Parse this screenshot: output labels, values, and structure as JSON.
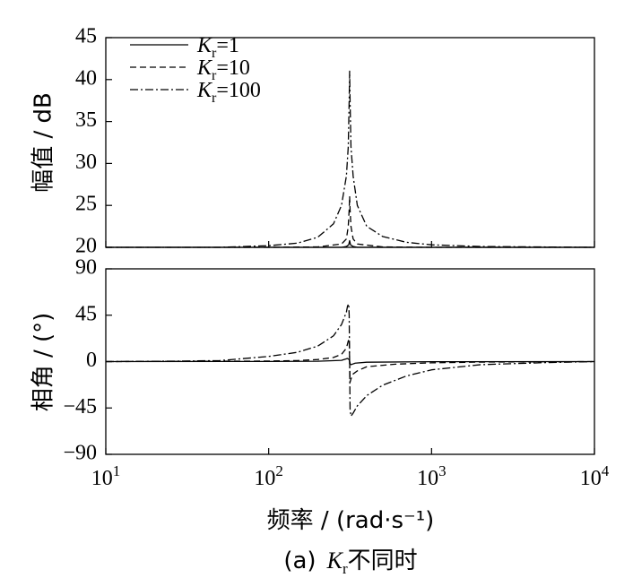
{
  "caption": {
    "prefix": "(a)",
    "K": "K",
    "sub": "r",
    "suffix": "不同时"
  },
  "chart_data": [
    {
      "type": "line",
      "ylabel": "幅值 / dB",
      "ylim": [
        20,
        45
      ],
      "yticks": [
        20,
        25,
        30,
        35,
        40,
        45
      ],
      "xscale": "log",
      "xlim": [
        10,
        10000
      ],
      "grid": false,
      "legend": {
        "placement": "top-left",
        "entries": [
          "Kr=1",
          "Kr=10",
          "Kr=100"
        ]
      },
      "resonance_frequency": 314,
      "series": [
        {
          "name": "Kr=1",
          "linestyle": "solid",
          "x": [
            10,
            100,
            200,
            280,
            300,
            310,
            314,
            318,
            330,
            350,
            500,
            1000,
            10000
          ],
          "y": [
            20,
            20,
            20,
            20,
            20.1,
            20.3,
            20.8,
            20.3,
            20.1,
            20,
            20,
            20,
            20
          ]
        },
        {
          "name": "Kr=10",
          "linestyle": "dashed",
          "x": [
            10,
            100,
            200,
            280,
            300,
            308,
            312,
            314,
            316,
            320,
            330,
            350,
            500,
            1000,
            10000
          ],
          "y": [
            20,
            20,
            20.05,
            20.4,
            21.0,
            22.5,
            24.5,
            26.1,
            24.5,
            22.5,
            21.0,
            20.4,
            20.05,
            20,
            20
          ]
        },
        {
          "name": "Kr=100",
          "linestyle": "dashdot",
          "x": [
            10,
            50,
            100,
            150,
            200,
            250,
            280,
            300,
            308,
            312,
            314,
            316,
            320,
            330,
            350,
            400,
            500,
            700,
            1000,
            2000,
            10000
          ],
          "y": [
            20,
            20,
            20.2,
            20.5,
            21.2,
            22.8,
            25.0,
            28.5,
            32.0,
            37.5,
            41.0,
            37.5,
            32.0,
            28.5,
            25.0,
            22.5,
            21.3,
            20.6,
            20.3,
            20.1,
            20
          ]
        }
      ]
    },
    {
      "type": "line",
      "ylabel": "相角 / (°)",
      "ylim": [
        -90,
        90
      ],
      "yticks": [
        -90,
        -45,
        0,
        45,
        90
      ],
      "xscale": "log",
      "xlim": [
        10,
        10000
      ],
      "xlabel": "频率 / (rad·s⁻¹)",
      "xticks": [
        10,
        100,
        1000,
        10000
      ],
      "grid": false,
      "series": [
        {
          "name": "Kr=1",
          "linestyle": "solid",
          "x": [
            10,
            100,
            200,
            280,
            305,
            312,
            316,
            320,
            340,
            400,
            1000,
            10000
          ],
          "y": [
            0,
            0.1,
            0.3,
            1.2,
            3,
            2,
            -2,
            -3,
            -1.5,
            -0.6,
            -0.1,
            0
          ]
        },
        {
          "name": "Kr=10",
          "linestyle": "dashed",
          "x": [
            10,
            100,
            150,
            200,
            250,
            280,
            300,
            308,
            312,
            316,
            320,
            330,
            350,
            400,
            600,
            1000,
            2000,
            10000
          ],
          "y": [
            0,
            0.5,
            1,
            2,
            4,
            7,
            13,
            20,
            22,
            -20,
            -17,
            -12,
            -9,
            -5,
            -2.5,
            -1.2,
            -0.5,
            0
          ]
        },
        {
          "name": "Kr=100",
          "linestyle": "dashdot",
          "x": [
            10,
            30,
            50,
            100,
            150,
            200,
            250,
            280,
            300,
            305,
            310,
            312,
            316,
            320,
            330,
            350,
            400,
            500,
            700,
            1000,
            2000,
            5000,
            10000
          ],
          "y": [
            0,
            0.5,
            1,
            5,
            9,
            15,
            25,
            36,
            48,
            54,
            56,
            45,
            -46,
            -53,
            -50,
            -43,
            -33,
            -23,
            -14,
            -8,
            -3,
            -1,
            0
          ]
        }
      ]
    }
  ]
}
